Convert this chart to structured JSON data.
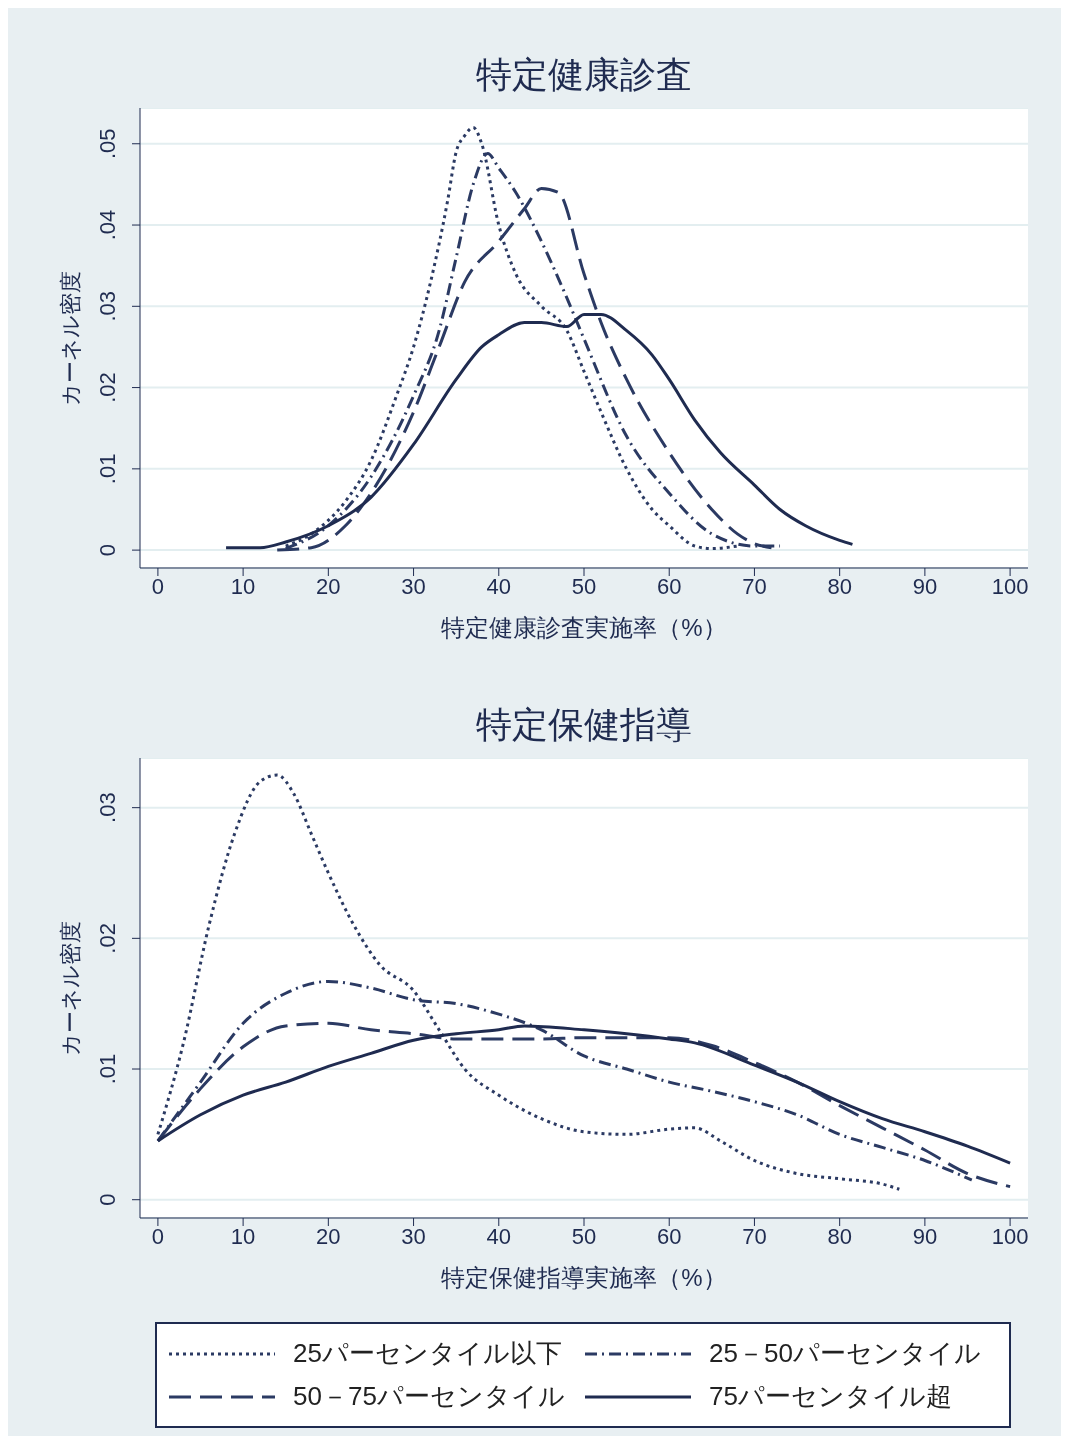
{
  "chart_data": [
    {
      "type": "line",
      "title": "特定健康診査",
      "xlabel": "特定健康診査実施率（%）",
      "ylabel": "カーネル密度",
      "xlim": [
        -2.1,
        102.1
      ],
      "xticks": [
        0,
        10,
        20,
        30,
        40,
        50,
        60,
        70,
        80,
        90,
        100
      ],
      "ylim": [
        -0.0022,
        0.0544
      ],
      "yticks": [
        {
          "value": 0,
          "label": "0"
        },
        {
          "value": 0.01,
          "label": ".01"
        },
        {
          "value": 0.02,
          "label": ".02"
        },
        {
          "value": 0.03,
          "label": ".03"
        },
        {
          "value": 0.04,
          "label": ".04"
        },
        {
          "value": 0.05,
          "label": ".05"
        }
      ],
      "grid": "y",
      "legend": false,
      "series": [
        {
          "color": "#2b3a63",
          "line_style": "dotted",
          "x": [
            15,
            18,
            22,
            25,
            28,
            30,
            32,
            34,
            35,
            36,
            37,
            38,
            40,
            42,
            45,
            48,
            50,
            52,
            55,
            58,
            60,
            63,
            65,
            68
          ],
          "values": [
            0.0005,
            0.002,
            0.006,
            0.011,
            0.019,
            0.025,
            0.033,
            0.043,
            0.049,
            0.051,
            0.052,
            0.05,
            0.04,
            0.034,
            0.03,
            0.027,
            0.022,
            0.017,
            0.01,
            0.005,
            0.003,
            0.0005,
            0.0002,
            0.0005
          ]
        },
        {
          "color": "#2b3a63",
          "line_style": "dashdot",
          "x": [
            15,
            20,
            25,
            30,
            33,
            35,
            37,
            38.7,
            40,
            42,
            45,
            48,
            50,
            55,
            60,
            65,
            70,
            73
          ],
          "values": [
            0.0002,
            0.003,
            0.009,
            0.019,
            0.027,
            0.036,
            0.045,
            0.0488,
            0.047,
            0.044,
            0.038,
            0.031,
            0.026,
            0.014,
            0.007,
            0.002,
            0.0005,
            0.0005
          ]
        },
        {
          "color": "#2b3a63",
          "line_style": "dashed",
          "x": [
            14,
            18,
            22,
            25,
            30,
            33,
            36,
            40,
            43,
            45,
            47,
            50,
            52,
            55,
            60,
            65,
            68,
            70,
            72
          ],
          "values": [
            0,
            0.0003,
            0.003,
            0.007,
            0.017,
            0.025,
            0.033,
            0.038,
            0.042,
            0.0445,
            0.044,
            0.034,
            0.028,
            0.021,
            0.012,
            0.005,
            0.002,
            0.0008,
            0.0003
          ]
        },
        {
          "color": "#1f2b50",
          "line_style": "solid",
          "x": [
            8,
            12,
            15,
            20,
            25,
            30,
            35,
            38,
            40,
            43,
            45,
            48,
            50,
            52,
            55,
            58,
            60,
            63,
            66,
            70,
            73,
            76,
            80,
            81.5
          ],
          "values": [
            0.0003,
            0.0003,
            0.001,
            0.003,
            0.0065,
            0.013,
            0.021,
            0.025,
            0.0265,
            0.028,
            0.028,
            0.0275,
            0.029,
            0.029,
            0.027,
            0.024,
            0.021,
            0.016,
            0.012,
            0.008,
            0.005,
            0.003,
            0.0012,
            0.0007
          ]
        }
      ]
    },
    {
      "type": "line",
      "title": "特定保健指導",
      "xlabel": "特定保健指導実施率（%）",
      "ylabel": "カーネル密度",
      "xlim": [
        -2.1,
        102.1
      ],
      "xticks": [
        0,
        10,
        20,
        30,
        40,
        50,
        60,
        70,
        80,
        90,
        100
      ],
      "ylim": [
        -0.0014,
        0.0338
      ],
      "yticks": [
        {
          "value": 0,
          "label": "0"
        },
        {
          "value": 0.01,
          "label": ".01"
        },
        {
          "value": 0.02,
          "label": ".02"
        },
        {
          "value": 0.03,
          "label": ".03"
        }
      ],
      "grid": "y",
      "legend": "bottom",
      "series": [
        {
          "name": "25パーセンタイル以下",
          "color": "#2b3a63",
          "line_style": "dotted",
          "x": [
            0,
            3,
            6,
            9,
            12,
            14,
            16,
            18,
            20,
            23,
            26,
            30,
            33,
            36,
            40,
            45,
            50,
            55,
            60,
            63,
            66,
            70,
            75,
            80,
            85,
            87
          ],
          "values": [
            0.005,
            0.012,
            0.021,
            0.028,
            0.032,
            0.0325,
            0.031,
            0.028,
            0.025,
            0.021,
            0.018,
            0.016,
            0.013,
            0.01,
            0.008,
            0.0062,
            0.0052,
            0.005,
            0.0054,
            0.0055,
            0.0045,
            0.003,
            0.002,
            0.0016,
            0.0012,
            0.0008
          ]
        },
        {
          "name": "25－50パーセンタイル",
          "color": "#2b3a63",
          "line_style": "dashdot",
          "x": [
            0,
            5,
            10,
            15,
            20,
            25,
            30,
            35,
            40,
            45,
            50,
            55,
            60,
            65,
            70,
            75,
            80,
            85,
            90,
            95.5
          ],
          "values": [
            0.0045,
            0.009,
            0.0135,
            0.0158,
            0.0167,
            0.0162,
            0.0153,
            0.015,
            0.0142,
            0.013,
            0.011,
            0.01,
            0.009,
            0.0083,
            0.0075,
            0.0065,
            0.005,
            0.004,
            0.003,
            0.0015
          ]
        },
        {
          "name": "50－75パーセンタイル",
          "color": "#2b3a63",
          "line_style": "dashed",
          "x": [
            0,
            5,
            10,
            15,
            20,
            25,
            30,
            35,
            40,
            45,
            50,
            55,
            60,
            65,
            70,
            75,
            80,
            85,
            90,
            95,
            100
          ],
          "values": [
            0.0045,
            0.0085,
            0.0117,
            0.0133,
            0.0135,
            0.013,
            0.0127,
            0.0123,
            0.0123,
            0.0123,
            0.0124,
            0.0124,
            0.0124,
            0.0118,
            0.0105,
            0.009,
            0.0072,
            0.0055,
            0.0038,
            0.002,
            0.001
          ]
        },
        {
          "name": "75パーセンタイル超",
          "color": "#1f2b50",
          "line_style": "solid",
          "x": [
            0,
            5,
            10,
            15,
            20,
            25,
            30,
            35,
            40,
            43,
            50,
            55,
            60,
            63,
            70,
            75,
            80,
            85,
            90,
            95,
            100
          ],
          "values": [
            0.0045,
            0.0065,
            0.008,
            0.009,
            0.0102,
            0.0112,
            0.0122,
            0.0127,
            0.013,
            0.0133,
            0.013,
            0.0127,
            0.0123,
            0.012,
            0.0103,
            0.009,
            0.0075,
            0.0062,
            0.0052,
            0.0041,
            0.0028
          ]
        }
      ]
    }
  ]
}
